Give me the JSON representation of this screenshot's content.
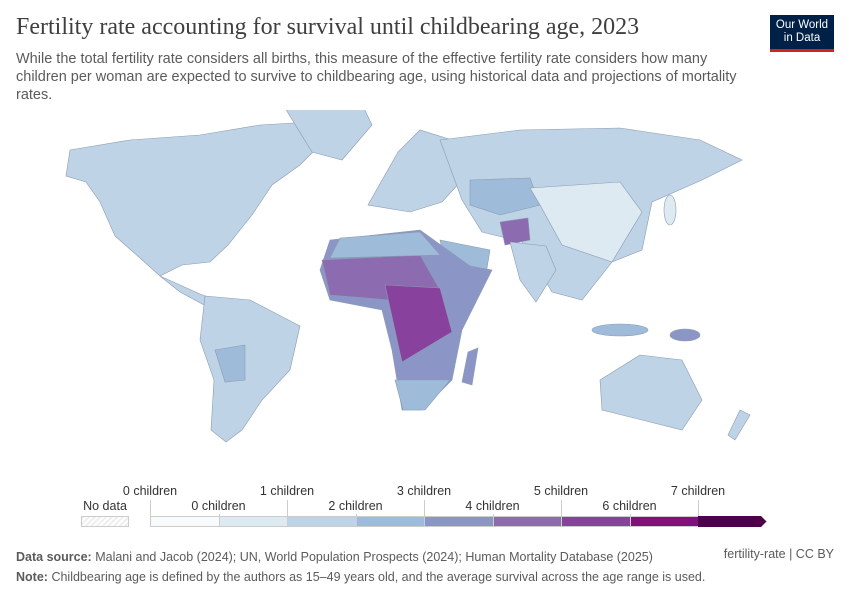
{
  "title": "Fertility rate accounting for survival until childbearing age, 2023",
  "subtitle": "While the total fertility rate considers all births, this measure of the effective fertility rate considers how many children per woman are expected to survive to childbearing age, using historical data and projections of mortality rates.",
  "logo": "Our World in Data",
  "legend": {
    "no_data": "No data",
    "labels": [
      "0 children",
      "0 children",
      "1 children",
      "2 children",
      "3 children",
      "4 children",
      "5 children",
      "6 children",
      "7 children"
    ],
    "colors": [
      "#f7fbfc",
      "#deeaf2",
      "#bfd3e6",
      "#9ebcda",
      "#8c96c6",
      "#8c6bb1",
      "#88419d",
      "#810f7c",
      "#4d004b"
    ],
    "no_data_color": "#e8e8e8"
  },
  "map_colors": {
    "low": "#bfd3e6",
    "lower": "#deeaf2",
    "mid": "#9ebcda",
    "high": "#8c6bb1",
    "higher": "#88419d",
    "ocean": "#ffffff"
  },
  "footer": {
    "source_label": "Data source:",
    "source": "Malani and Jacob (2024); UN, World Population Prospects (2024); Human Mortality Database (2025)",
    "note_label": "Note:",
    "note": "Childbearing age is defined by the authors as 15–49 years old, and the average survival across the age range is used.",
    "license": "fertility-rate | CC BY"
  }
}
